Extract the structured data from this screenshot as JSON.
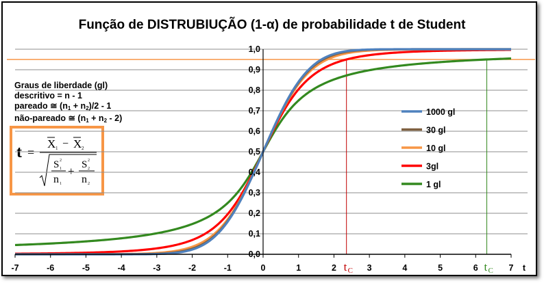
{
  "title": "Função de DISTRUBIUÇÃO (1-α) de probabilidade t de Student",
  "gl_note": {
    "line1": "Graus de liberdade (gl)",
    "line2": "descritivo = n - 1",
    "line3_pre": "pareado ≅ (n",
    "line3_sub1": "1",
    "line3_mid": " + n",
    "line3_sub2": "2",
    "line3_post": ")/2 - 1",
    "line4_pre": "não-pareado ≅ (n",
    "line4_sub1": "1",
    "line4_mid": " + n",
    "line4_sub2": "2",
    "line4_post": " - 2)"
  },
  "formula": {
    "t": "t",
    "equals": "=",
    "x1": "X",
    "x1_sub": "1",
    "minus": "−",
    "x2": "X",
    "x2_sub": "2",
    "s1": "S",
    "s1_sub": "1",
    "s1_sup": "2",
    "n1": "n",
    "n1_sub": "1",
    "plus": "+",
    "s2": "S",
    "s2_sub": "2",
    "s2_sup": "2",
    "n2": "n",
    "n2_sub": "2"
  },
  "colors": {
    "df1000": "#4f81bd",
    "df30": "#7f6040",
    "df10": "#f79646",
    "df3": "#ff0000",
    "df1": "#33891f",
    "alpha_line": "#f79646",
    "tc_red": "#c00000",
    "tc_green": "#33891f",
    "formula_border": "#f79646"
  },
  "chart_data": {
    "type": "line",
    "title": "Função de DISTRUBIUÇÃO (1-α) de probabilidade t de Student",
    "xlabel": "t",
    "ylabel": "",
    "xlim": [
      -7,
      7
    ],
    "ylim": [
      0,
      1
    ],
    "x_ticks": [
      "-7",
      "-6",
      "-5",
      "-4",
      "-3",
      "-2",
      "-1",
      "0",
      "1",
      "2",
      "3",
      "4",
      "5",
      "6",
      "7"
    ],
    "y_ticks": [
      "0,0",
      "0,1",
      "0,2",
      "0,3",
      "0,4",
      "0,5",
      "0,6",
      "0,7",
      "0,8",
      "0,9",
      "1,0"
    ],
    "grid": "horizontal",
    "legend_position": "right",
    "series": [
      {
        "name": "1000 gl",
        "df": 1000,
        "color_key": "df1000"
      },
      {
        "name": "30 gl",
        "df": 30,
        "color_key": "df30"
      },
      {
        "name": "10 gl",
        "df": 10,
        "color_key": "df10"
      },
      {
        "name": "3gl",
        "df": 3,
        "color_key": "df3"
      },
      {
        "name": "1 gl",
        "df": 1,
        "color_key": "df1"
      }
    ],
    "x": [
      -7,
      -6,
      -5,
      -4,
      -3,
      -2.5,
      -2,
      -1.5,
      -1,
      -0.5,
      0,
      0.5,
      1,
      1.5,
      2,
      2.5,
      3,
      4,
      5,
      6,
      7
    ],
    "values": {
      "1000 gl": [
        0.0,
        0.0,
        0.0,
        0.0,
        0.001,
        0.006,
        0.023,
        0.067,
        0.159,
        0.309,
        0.5,
        0.691,
        0.841,
        0.933,
        0.977,
        0.994,
        0.999,
        1.0,
        1.0,
        1.0,
        1.0
      ],
      "30 gl": [
        0.0,
        0.0,
        0.0,
        0.0,
        0.003,
        0.009,
        0.027,
        0.072,
        0.163,
        0.31,
        0.5,
        0.69,
        0.837,
        0.928,
        0.973,
        0.991,
        0.997,
        1.0,
        1.0,
        1.0,
        1.0
      ],
      "10 gl": [
        0.0,
        0.0,
        0.0,
        0.001,
        0.007,
        0.016,
        0.037,
        0.082,
        0.171,
        0.314,
        0.5,
        0.686,
        0.829,
        0.918,
        0.963,
        0.984,
        0.993,
        0.999,
        1.0,
        1.0,
        1.0
      ],
      "3gl": [
        0.003,
        0.005,
        0.008,
        0.014,
        0.029,
        0.044,
        0.07,
        0.115,
        0.196,
        0.326,
        0.5,
        0.674,
        0.804,
        0.885,
        0.93,
        0.956,
        0.971,
        0.986,
        0.992,
        0.995,
        0.997
      ],
      "1 gl": [
        0.045,
        0.053,
        0.063,
        0.078,
        0.102,
        0.121,
        0.148,
        0.187,
        0.25,
        0.352,
        0.5,
        0.648,
        0.75,
        0.813,
        0.852,
        0.879,
        0.898,
        0.922,
        0.937,
        0.947,
        0.955
      ]
    },
    "annotations": [
      {
        "type": "hline",
        "y": 0.95,
        "color_key": "alpha_line"
      },
      {
        "type": "vline",
        "x": 2.353,
        "y_top": 0.95,
        "color_key": "tc_red",
        "label": "t",
        "label_sub": "C"
      },
      {
        "type": "vline",
        "x": 6.314,
        "y_top": 0.95,
        "color_key": "tc_green",
        "label": "t",
        "label_sub": "C"
      }
    ]
  }
}
